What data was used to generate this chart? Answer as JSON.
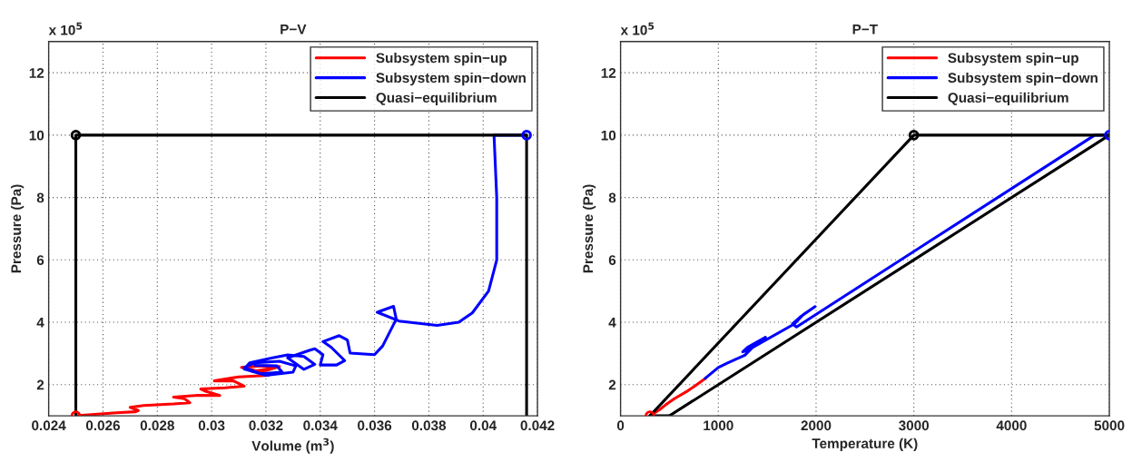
{
  "chart_data": [
    {
      "type": "line",
      "title": "P−V",
      "xlabel": "Volume (m$^{3}$)",
      "ylabel": "Pressure (Pa)",
      "annotations": [
        "x 10$^{5}$"
      ],
      "xlim": [
        0.024,
        0.042
      ],
      "xticks": [
        0.024,
        0.026,
        0.028,
        0.03,
        0.032,
        0.034,
        0.036,
        0.038,
        0.04,
        0.042
      ],
      "ylim": [
        1,
        13
      ],
      "yticks": [
        2,
        4,
        6,
        8,
        10,
        12
      ],
      "grid": true,
      "legend": "top right",
      "line_style": "solid",
      "series": [
        {
          "type": "scatter",
          "marker": "circle",
          "color": "#ff0000",
          "x": [
            0.025
          ],
          "values": [
            1
          ]
        },
        {
          "type": "scatter",
          "marker": "circle",
          "color": "#0000ff",
          "x": [
            0.0416
          ],
          "values": [
            10
          ]
        },
        {
          "type": "scatter",
          "marker": "circle",
          "color": "#000000",
          "x": [
            0.025
          ],
          "values": [
            10
          ]
        },
        {
          "name": "Subsystem spin−up",
          "color": "#ff0000",
          "x": [
            0.025,
            0.0265,
            0.0272,
            0.0273,
            0.027,
            0.0275,
            0.0286,
            0.0292,
            0.029,
            0.0286,
            0.0295,
            0.0303,
            0.0298,
            0.0296,
            0.0305,
            0.0312,
            0.0308,
            0.0301,
            0.031,
            0.0321,
            0.0316,
            0.0311,
            0.0318,
            0.0325,
            0.032,
            0.0315,
            0.0322
          ],
          "values": [
            1.0,
            1.1,
            1.13,
            1.17,
            1.27,
            1.33,
            1.38,
            1.42,
            1.55,
            1.6,
            1.66,
            1.65,
            1.78,
            1.86,
            1.9,
            1.95,
            2.12,
            2.12,
            2.25,
            2.3,
            2.45,
            2.55,
            2.6,
            2.58,
            2.45,
            2.42,
            2.52
          ]
        },
        {
          "name": "Subsystem spin−down",
          "color": "#0000ff",
          "x": [
            0.0416,
            0.0404,
            0.0405,
            0.0405,
            0.0402,
            0.0396,
            0.0391,
            0.0383,
            0.0369,
            0.0361,
            0.0367,
            0.0368,
            0.0363,
            0.036,
            0.0351,
            0.035,
            0.0347,
            0.0341,
            0.0344,
            0.0349,
            0.0346,
            0.034,
            0.0341,
            0.0338,
            0.0336,
            0.0328,
            0.0334,
            0.0338,
            0.0334,
            0.0328,
            0.0322,
            0.0314,
            0.0312,
            0.032,
            0.033,
            0.0331,
            0.0325,
            0.0316,
            0.0312,
            0.0318,
            0.0326,
            0.0324,
            0.0316
          ],
          "values": [
            10.0,
            10.0,
            8.0,
            6.0,
            5.0,
            4.3,
            4.0,
            3.9,
            4.04,
            4.32,
            4.51,
            4.1,
            3.24,
            2.96,
            3.01,
            3.43,
            3.57,
            3.38,
            3.2,
            2.77,
            2.63,
            2.63,
            2.96,
            3.15,
            3.1,
            2.86,
            2.49,
            2.65,
            2.9,
            2.95,
            2.85,
            2.7,
            2.5,
            2.3,
            2.4,
            2.6,
            2.75,
            2.7,
            2.55,
            2.35,
            2.4,
            2.6,
            2.62
          ]
        },
        {
          "name": "Quasi−equilibrium",
          "color": "#000000",
          "x": [
            0.025,
            0.025,
            0.0416,
            0.0416
          ],
          "values": [
            1,
            10,
            10,
            1
          ]
        }
      ]
    },
    {
      "type": "line",
      "title": "P−T",
      "xlabel": "Temperature (K)",
      "ylabel": "Pressure (Pa)",
      "annotations": [
        "x 10$^{5}$"
      ],
      "xlim": [
        0,
        5000
      ],
      "xticks": [
        0,
        1000,
        2000,
        3000,
        4000,
        5000
      ],
      "ylim": [
        1,
        13
      ],
      "yticks": [
        2,
        4,
        6,
        8,
        10,
        12
      ],
      "grid": true,
      "legend": "top right",
      "line_style": "solid",
      "series": [
        {
          "type": "scatter",
          "marker": "circle",
          "color": "#ff0000",
          "x": [
            300
          ],
          "values": [
            1
          ]
        },
        {
          "type": "scatter",
          "marker": "circle",
          "color": "#0000ff",
          "x": [
            5000
          ],
          "values": [
            10
          ]
        },
        {
          "type": "scatter",
          "marker": "circle",
          "color": "#000000",
          "x": [
            3000
          ],
          "values": [
            10
          ]
        },
        {
          "name": "Subsystem spin−up",
          "color": "#ff0000",
          "x": [
            300,
            400,
            460,
            550,
            688,
            780,
            870
          ],
          "values": [
            1.0,
            1.2,
            1.35,
            1.55,
            1.8,
            2.0,
            2.2
          ]
        },
        {
          "name": "Subsystem spin−down",
          "color": "#0000ff",
          "x": [
            5000,
            4850,
            1800,
            1760,
            1850,
            1990,
            1870,
            1780,
            1300,
            1250,
            1300,
            1482,
            1400,
            1271,
            1100,
            1000,
            865
          ],
          "values": [
            10,
            10,
            3.85,
            3.95,
            4.2,
            4.5,
            4.25,
            3.95,
            3.1,
            3.05,
            3.2,
            3.52,
            3.35,
            2.94,
            2.7,
            2.55,
            2.2
          ]
        },
        {
          "name": "Quasi−equilibrium",
          "color": "#000000",
          "x": [
            300,
            3000,
            5000,
            500
          ],
          "values": [
            1,
            10,
            10,
            1
          ]
        },
        {
          "color": "#000000",
          "x": [
            500,
            300
          ],
          "values": [
            1,
            1
          ]
        }
      ]
    }
  ]
}
